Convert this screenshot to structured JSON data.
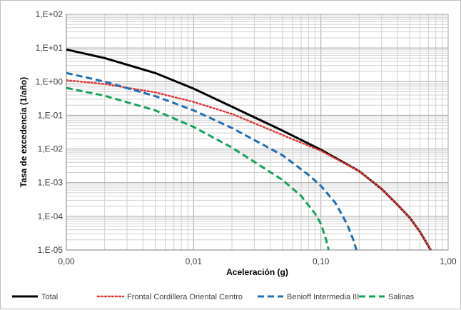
{
  "chart_data": {
    "type": "line",
    "title": "",
    "xlabel": "Aceleración (g)",
    "ylabel": "Tasa de excedencia (1/año)",
    "x_scale": "log",
    "y_scale": "log",
    "xlim": [
      0.001,
      1.0
    ],
    "ylim": [
      1e-05,
      100
    ],
    "x_ticks": [
      {
        "value": 0.001,
        "label": "0,00"
      },
      {
        "value": 0.01,
        "label": "0,01"
      },
      {
        "value": 0.1,
        "label": "0,10"
      },
      {
        "value": 1.0,
        "label": "1,00"
      }
    ],
    "y_ticks": [
      {
        "value": 100,
        "label": "1,E+02"
      },
      {
        "value": 10,
        "label": "1,E+01"
      },
      {
        "value": 1,
        "label": "1,E+00"
      },
      {
        "value": 0.1,
        "label": "1,E-01"
      },
      {
        "value": 0.01,
        "label": "1,E-02"
      },
      {
        "value": 0.001,
        "label": "1,E-03"
      },
      {
        "value": 0.0001,
        "label": "1,E-04"
      },
      {
        "value": 1e-05,
        "label": "1,E-05"
      }
    ],
    "grid": true,
    "legend_position": "bottom",
    "series": [
      {
        "name": "Total",
        "color": "#000000",
        "style": "solid",
        "points": [
          [
            0.001,
            9.0
          ],
          [
            0.002,
            5.0
          ],
          [
            0.005,
            1.8
          ],
          [
            0.01,
            0.62
          ],
          [
            0.02,
            0.18
          ],
          [
            0.05,
            0.035
          ],
          [
            0.1,
            0.0095
          ],
          [
            0.2,
            0.0022
          ],
          [
            0.3,
            0.00065
          ],
          [
            0.4,
            0.00022
          ],
          [
            0.5,
            9e-05
          ],
          [
            0.6,
            3.5e-05
          ],
          [
            0.7,
            1.3e-05
          ],
          [
            0.73,
            1e-05
          ]
        ]
      },
      {
        "name": "Frontal Cordillera Oriental Centro",
        "color": "#e03c3c",
        "style": "dotted",
        "points": [
          [
            0.001,
            1.1
          ],
          [
            0.002,
            0.85
          ],
          [
            0.005,
            0.48
          ],
          [
            0.01,
            0.25
          ],
          [
            0.02,
            0.11
          ],
          [
            0.05,
            0.026
          ],
          [
            0.1,
            0.0088
          ],
          [
            0.2,
            0.0022
          ],
          [
            0.3,
            0.00065
          ],
          [
            0.4,
            0.00022
          ],
          [
            0.5,
            9e-05
          ],
          [
            0.6,
            3.5e-05
          ],
          [
            0.7,
            1.3e-05
          ],
          [
            0.73,
            1e-05
          ]
        ]
      },
      {
        "name": "Benioff Intermedia III",
        "color": "#1f6fb5",
        "style": "dashed",
        "points": [
          [
            0.001,
            1.8
          ],
          [
            0.002,
            1.0
          ],
          [
            0.005,
            0.37
          ],
          [
            0.01,
            0.14
          ],
          [
            0.02,
            0.042
          ],
          [
            0.05,
            0.0065
          ],
          [
            0.08,
            0.0017
          ],
          [
            0.1,
            0.0008
          ],
          [
            0.13,
            0.00025
          ],
          [
            0.16,
            6e-05
          ],
          [
            0.18,
            2e-05
          ],
          [
            0.19,
            1e-05
          ]
        ]
      },
      {
        "name": "Salinas",
        "color": "#16a35a",
        "style": "dashed",
        "points": [
          [
            0.001,
            0.65
          ],
          [
            0.002,
            0.38
          ],
          [
            0.005,
            0.14
          ],
          [
            0.01,
            0.045
          ],
          [
            0.02,
            0.011
          ],
          [
            0.05,
            0.0012
          ],
          [
            0.07,
            0.0004
          ],
          [
            0.09,
            0.00012
          ],
          [
            0.1,
            6e-05
          ],
          [
            0.11,
            2e-05
          ],
          [
            0.115,
            1e-05
          ]
        ]
      }
    ]
  }
}
